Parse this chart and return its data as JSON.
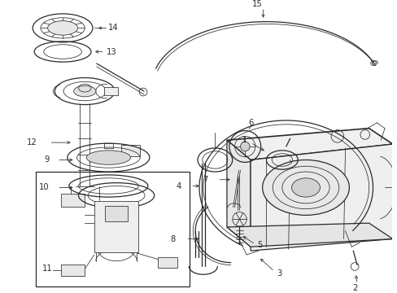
{
  "bg_color": "#ffffff",
  "line_color": "#2a2a2a",
  "figsize": [
    4.89,
    3.6
  ],
  "dpi": 100,
  "lw_thin": 0.55,
  "lw_med": 0.9,
  "lw_thick": 1.2,
  "fontsize": 7.2
}
